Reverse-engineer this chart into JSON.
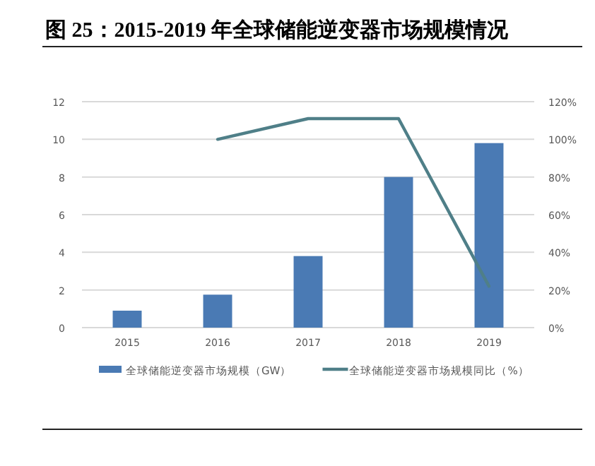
{
  "chart_data": {
    "type": "bar",
    "title": "图 25：2015-2019 年全球储能逆变器市场规模情况",
    "categories": [
      "2015",
      "2016",
      "2017",
      "2018",
      "2019"
    ],
    "series": [
      {
        "name": "全球储能逆变器市场规模（GW）",
        "color": "#4a7ab4",
        "values": [
          0.9,
          1.75,
          3.8,
          8.0,
          9.8
        ]
      },
      {
        "name": "全球储能逆变器市场规模同比（%）",
        "type": "line",
        "axis": "y2",
        "color": "#4f7f88",
        "values": [
          null,
          100,
          111,
          111,
          22
        ]
      }
    ],
    "ylim": [
      0,
      12
    ],
    "yticks": [
      0,
      2,
      4,
      6,
      8,
      10,
      12
    ],
    "y2lim": [
      0,
      120
    ],
    "y2ticks": [
      {
        "value": 0,
        "label": "0%"
      },
      {
        "value": 20,
        "label": "20%"
      },
      {
        "value": 40,
        "label": "40%"
      },
      {
        "value": 60,
        "label": "60%"
      },
      {
        "value": 80,
        "label": "80%"
      },
      {
        "value": 100,
        "label": "100%"
      },
      {
        "value": 120,
        "label": "120%"
      }
    ],
    "grid": "y",
    "legend": "bottom",
    "marker": "none"
  }
}
